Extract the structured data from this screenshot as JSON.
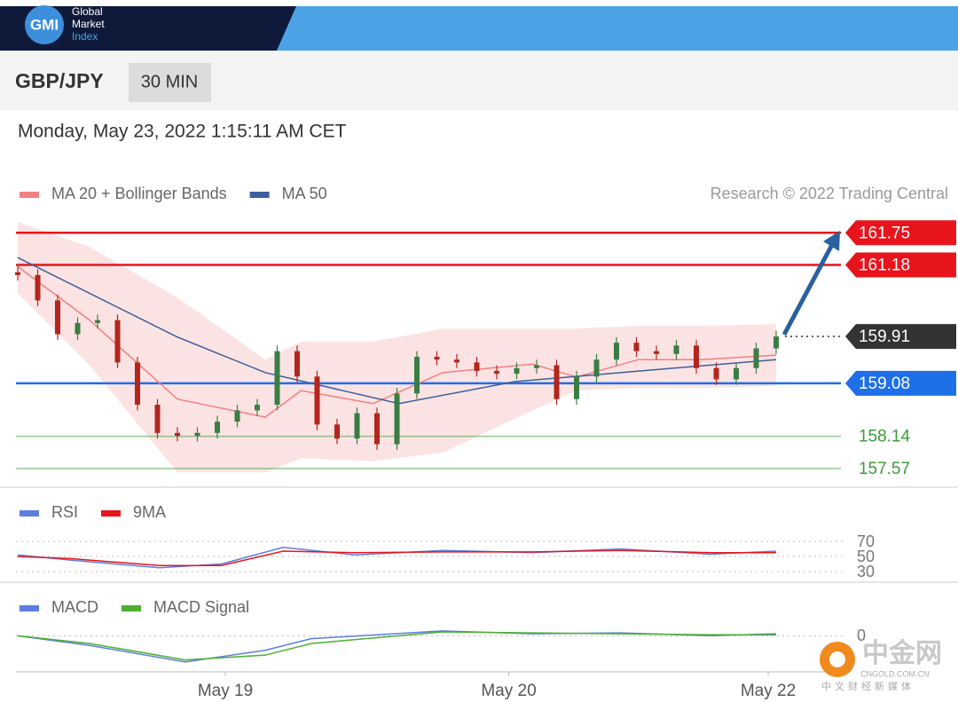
{
  "header": {
    "logo": "GMI",
    "brand": [
      "Global",
      "Market",
      "Index"
    ],
    "symbol": "GBP/JPY",
    "interval": "30 MIN",
    "datetime": "Monday, May 23, 2022 1:15:11 AM CET",
    "credit": "Research © 2022 Trading Central"
  },
  "watermark": {
    "name": "中金网",
    "site": "CNGOLD.COM.CN",
    "tagline": "中文财经新媒体"
  },
  "chart_data": [
    {
      "type": "candlestick",
      "up_color": "#3a7d44",
      "down_color": "#b3261e",
      "ylim": [
        157.3,
        162.1
      ],
      "open": [
        161.05,
        161.0,
        160.55,
        159.95,
        160.15,
        160.2,
        159.45,
        158.7,
        158.2,
        158.15,
        158.2,
        158.4,
        158.6,
        158.7,
        159.65,
        159.2,
        158.35,
        158.1,
        158.55,
        158.0,
        158.9,
        159.55,
        159.5,
        159.45,
        159.3,
        159.25,
        159.35,
        159.4,
        158.8,
        159.2,
        159.5,
        159.8,
        159.65,
        159.6,
        159.75,
        159.35,
        159.15,
        159.35,
        159.7
      ],
      "high": [
        161.15,
        161.1,
        160.65,
        160.25,
        160.3,
        160.3,
        159.55,
        158.8,
        158.3,
        158.3,
        158.5,
        158.7,
        158.8,
        159.75,
        159.75,
        159.3,
        158.45,
        158.65,
        158.65,
        159.0,
        159.65,
        159.65,
        159.6,
        159.55,
        159.4,
        159.45,
        159.5,
        159.5,
        159.3,
        159.6,
        159.9,
        159.9,
        159.75,
        159.85,
        159.85,
        159.45,
        159.45,
        159.8,
        160.01
      ],
      "low": [
        160.9,
        160.45,
        159.85,
        159.85,
        160.05,
        159.35,
        158.6,
        158.1,
        158.05,
        158.05,
        158.1,
        158.3,
        158.5,
        158.6,
        159.1,
        158.25,
        158.0,
        158.0,
        157.9,
        157.9,
        158.8,
        159.4,
        159.35,
        159.2,
        159.15,
        159.15,
        159.25,
        158.7,
        158.7,
        159.1,
        159.4,
        159.55,
        159.5,
        159.5,
        159.25,
        159.05,
        159.05,
        159.25,
        159.6
      ],
      "close": [
        161.0,
        160.55,
        159.95,
        160.15,
        160.2,
        159.45,
        158.7,
        158.2,
        158.15,
        158.2,
        158.4,
        158.6,
        158.7,
        159.65,
        159.2,
        158.35,
        158.1,
        158.55,
        158.0,
        158.9,
        159.55,
        159.5,
        159.45,
        159.3,
        159.25,
        159.35,
        159.4,
        158.8,
        159.2,
        159.5,
        159.8,
        159.65,
        159.6,
        159.75,
        159.35,
        159.15,
        159.35,
        159.7,
        159.91
      ],
      "series": [
        {
          "name": "MA 20 + Bollinger Bands",
          "color": "#f08080",
          "x": [
            0,
            3.6,
            8,
            12.4,
            14.2,
            17.8,
            21.3,
            25.8,
            28,
            31.1,
            34.2,
            38
          ],
          "values": [
            161.15,
            160.2,
            158.8,
            158.48,
            158.95,
            158.72,
            159.27,
            159.42,
            159.19,
            159.5,
            159.5,
            159.58
          ],
          "upper": [
            161.94,
            161.5,
            160.6,
            159.5,
            159.82,
            159.82,
            160.05,
            160.05,
            160.05,
            160.1,
            160.1,
            160.13
          ],
          "lower": [
            160.68,
            159.4,
            157.5,
            157.5,
            157.75,
            157.7,
            157.85,
            158.6,
            158.95,
            159.0,
            159.0,
            159.03
          ]
        },
        {
          "name": "MA 50",
          "color": "#3b5f9a",
          "x": [
            0,
            8,
            12.4,
            19.1,
            24.9,
            30.2,
            38
          ],
          "values": [
            161.31,
            159.9,
            159.27,
            158.72,
            159.11,
            159.27,
            159.5
          ]
        }
      ],
      "levels": [
        {
          "value": 161.75,
          "color": "#e8141c",
          "label_box": true,
          "line_style": "solid"
        },
        {
          "value": 161.18,
          "color": "#e8141c",
          "label_box": true,
          "line_style": "solid"
        },
        {
          "value": 159.91,
          "color": "#333333",
          "label_box": true,
          "line_style": "dotted"
        },
        {
          "value": 159.08,
          "color": "#1e6fe8",
          "label_box": true,
          "line_style": "solid"
        },
        {
          "value": 158.14,
          "color": "#3c9a3c",
          "label_box": false,
          "line_style": "solid"
        },
        {
          "value": 157.57,
          "color": "#3c9a3c",
          "label_box": false,
          "line_style": "solid"
        }
      ]
    },
    {
      "type": "line",
      "ylim": [
        20,
        80
      ],
      "yticks": [
        70,
        50,
        30
      ],
      "grid": "dotted",
      "series": [
        {
          "name": "RSI",
          "color": "#5b7fe0",
          "x": [
            0,
            2.7,
            7.1,
            10.2,
            13.3,
            16.9,
            21.3,
            25.8,
            30.2,
            34.7,
            38
          ],
          "values": [
            52,
            45,
            35,
            40,
            62,
            52,
            58,
            55,
            60,
            53,
            57
          ]
        },
        {
          "name": "9MA",
          "color": "#e8141c",
          "x": [
            0,
            2.7,
            7.1,
            10.2,
            13.3,
            16.9,
            21.3,
            25.8,
            30.2,
            34.7,
            38
          ],
          "values": [
            50,
            47,
            38,
            38,
            57,
            55,
            56,
            56,
            58,
            55,
            55
          ]
        }
      ]
    },
    {
      "type": "line",
      "ylim": [
        -0.4,
        0.15
      ],
      "yticks": [
        0
      ],
      "grid": "dotted",
      "xticks": [
        {
          "value": 10.4,
          "label": "May 19"
        },
        {
          "value": 24.6,
          "label": "May 20"
        },
        {
          "value": 37.6,
          "label": "May 22"
        }
      ],
      "series": [
        {
          "name": "MACD",
          "color": "#5b7fe0",
          "x": [
            0,
            3.6,
            8.4,
            12.4,
            14.7,
            21.3,
            25.8,
            30.2,
            34.7,
            38
          ],
          "values": [
            0,
            -0.1,
            -0.27,
            -0.15,
            -0.03,
            0.05,
            0.02,
            0.03,
            0,
            0.02
          ]
        },
        {
          "name": "MACD Signal",
          "color": "#4caf30",
          "x": [
            0,
            3.6,
            8.4,
            12.4,
            14.7,
            21.3,
            25.8,
            30.2,
            34.7,
            38
          ],
          "values": [
            0,
            -0.08,
            -0.25,
            -0.2,
            -0.08,
            0.04,
            0.03,
            0.02,
            0.01,
            0.01
          ]
        }
      ]
    }
  ]
}
